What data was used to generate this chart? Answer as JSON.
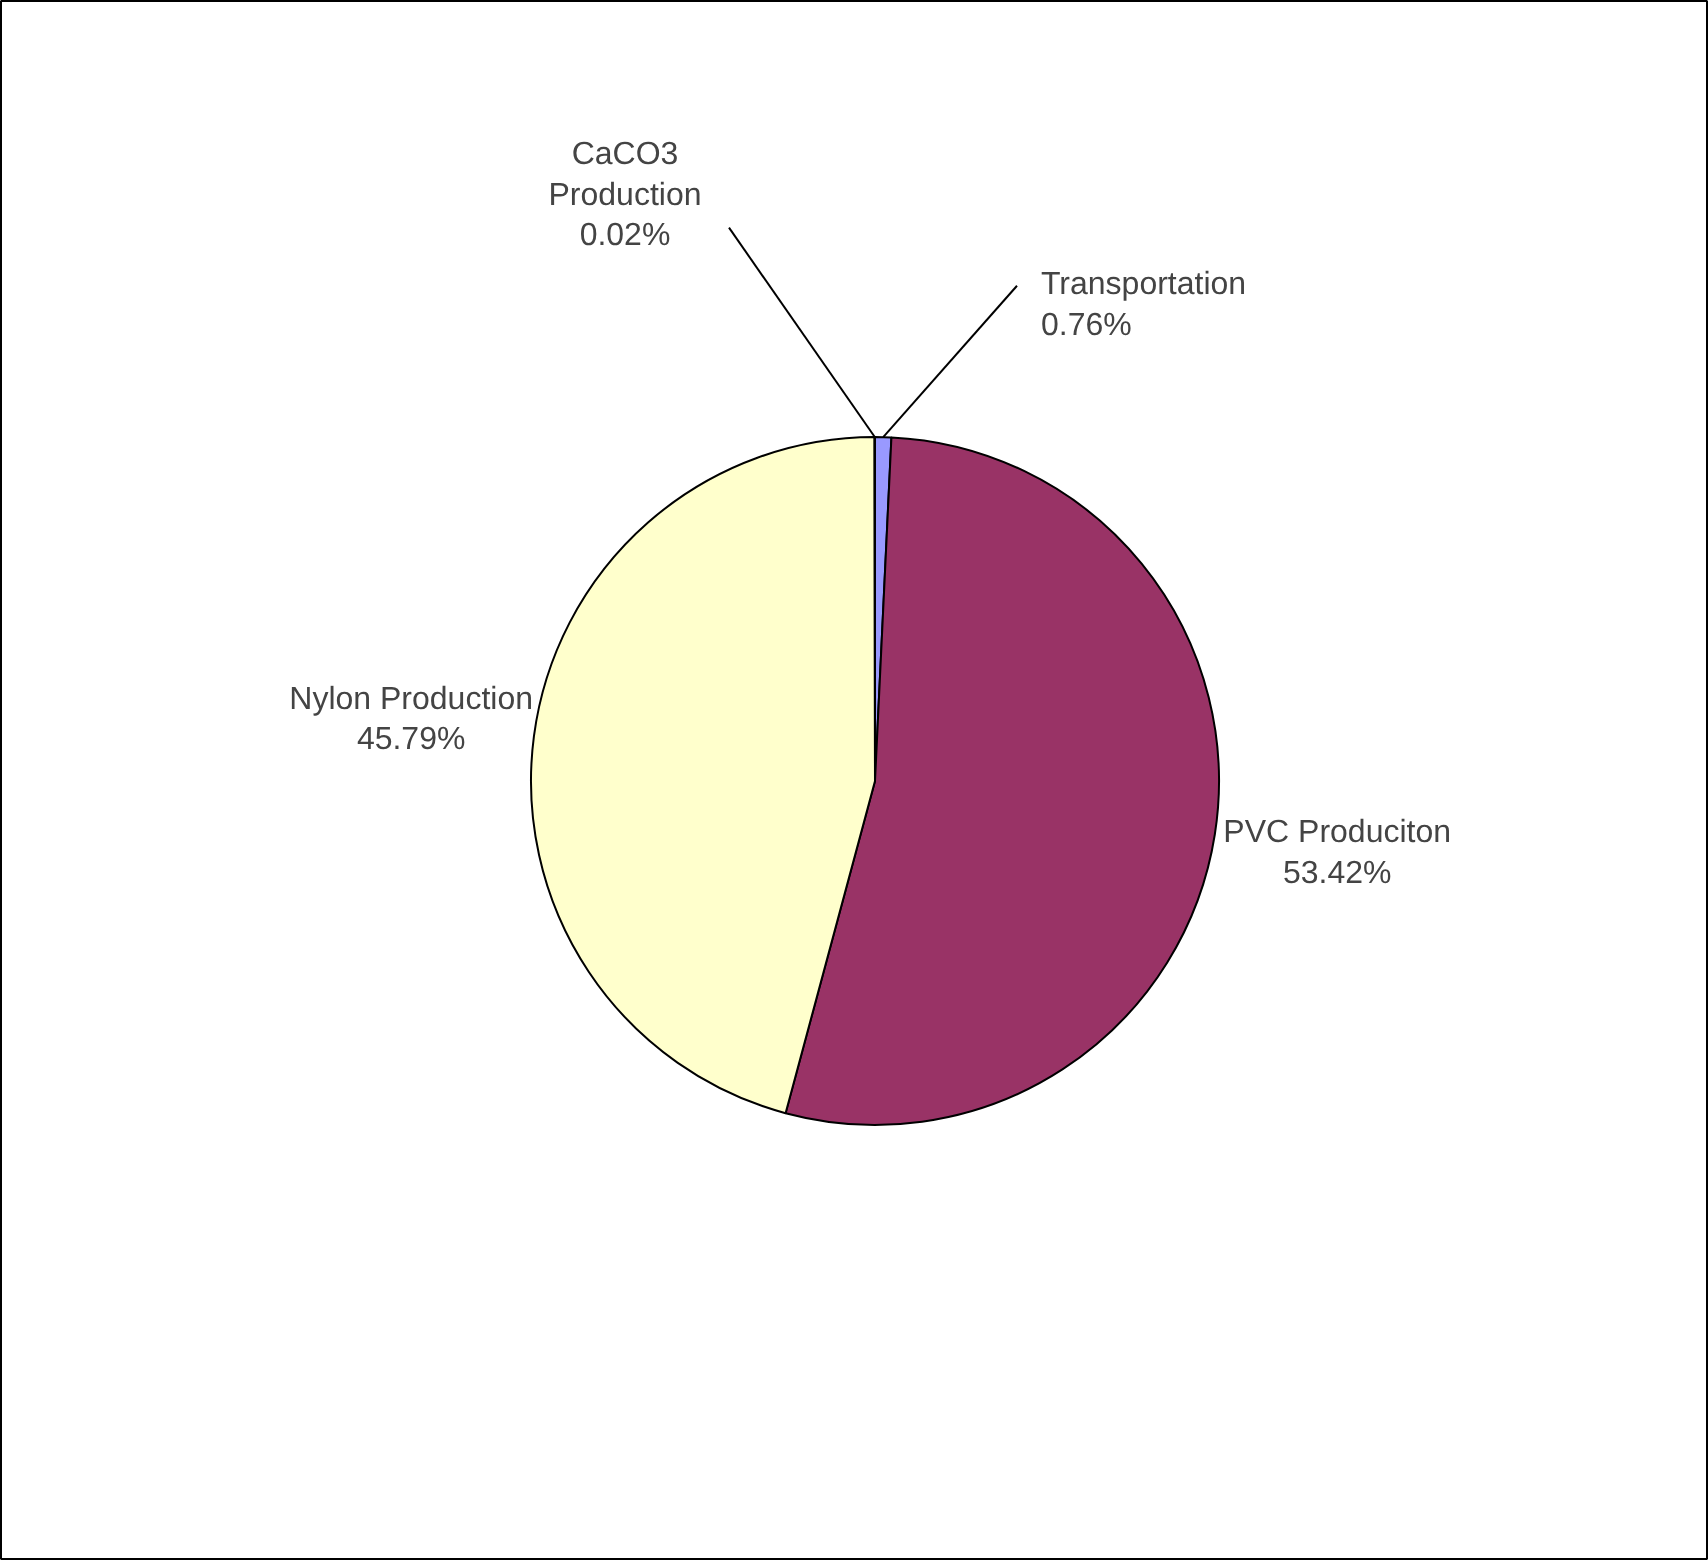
{
  "chart_data": {
    "type": "pie",
    "categories": [
      "Transportation",
      "PVC Produciton",
      "Nylon Production",
      "CaCO3\nProduction"
    ],
    "values": [
      0.76,
      53.42,
      45.79,
      0.02
    ],
    "value_labels": [
      "0.76%",
      "53.42%",
      "45.79%",
      "0.02%"
    ],
    "colors": [
      "#9999ff",
      "#993366",
      "#ffffcc",
      "#ccffff"
    ]
  }
}
